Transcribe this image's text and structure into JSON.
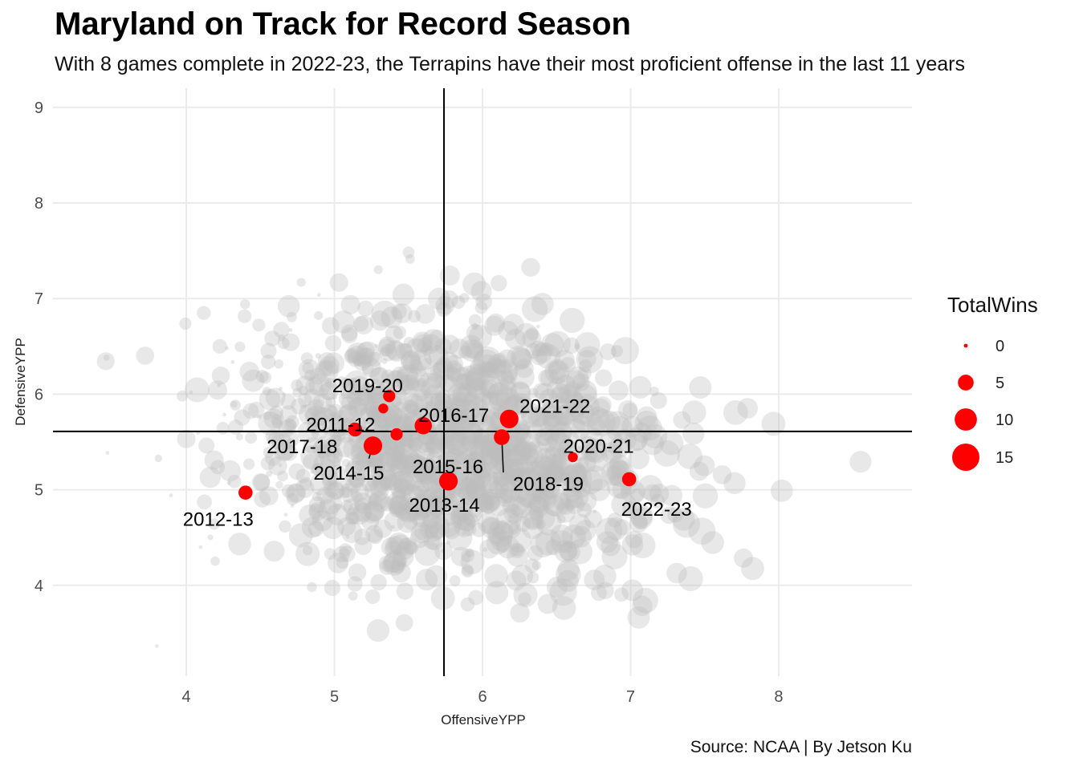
{
  "title": "Maryland on Track for Record Season",
  "subtitle": "With 8 games complete in 2022-23, the Terrapins have their most proficient offense in the last 11 years",
  "caption": "Source: NCAA | By Jetson Ku",
  "colors": {
    "highlight": "#ff0000",
    "background_points": "#bdbdbd",
    "grid": "#ebebeb",
    "ref_line": "#000000"
  },
  "chart_data": {
    "type": "scatter",
    "xlabel": "OffensiveYPP",
    "ylabel": "DefensiveYPP",
    "xlim": [
      3.1,
      8.9
    ],
    "ylim": [
      3.05,
      9.2
    ],
    "xticks": [
      4,
      5,
      6,
      7,
      8
    ],
    "yticks": [
      4,
      5,
      6,
      7,
      8,
      9
    ],
    "grid": true,
    "ref_lines": {
      "x": 5.74,
      "y": 5.61
    },
    "legend": {
      "title": "TotalWins",
      "entries": [
        0,
        5,
        10,
        15
      ],
      "placement": "right"
    },
    "maryland": [
      {
        "label": "2011-12",
        "x": 5.33,
        "y": 5.85,
        "wins": 2
      },
      {
        "label": "2012-13",
        "x": 4.4,
        "y": 4.97,
        "wins": 4
      },
      {
        "label": "2013-14",
        "x": 5.77,
        "y": 5.09,
        "wins": 7
      },
      {
        "label": "2014-15",
        "x": 5.26,
        "y": 5.46,
        "wins": 7
      },
      {
        "label": "2015-16",
        "x": 5.42,
        "y": 5.58,
        "wins": 3
      },
      {
        "label": "2016-17",
        "x": 5.6,
        "y": 5.67,
        "wins": 6
      },
      {
        "label": "2017-18",
        "x": 5.14,
        "y": 5.63,
        "wins": 4
      },
      {
        "label": "2018-19",
        "x": 6.13,
        "y": 5.55,
        "wins": 5
      },
      {
        "label": "2019-20",
        "x": 5.37,
        "y": 5.98,
        "wins": 3
      },
      {
        "label": "2020-21",
        "x": 6.61,
        "y": 5.34,
        "wins": 2
      },
      {
        "label": "2021-22",
        "x": 6.18,
        "y": 5.74,
        "wins": 7
      },
      {
        "label": "2022-23",
        "x": 6.99,
        "y": 5.11,
        "wins": 4
      }
    ]
  }
}
